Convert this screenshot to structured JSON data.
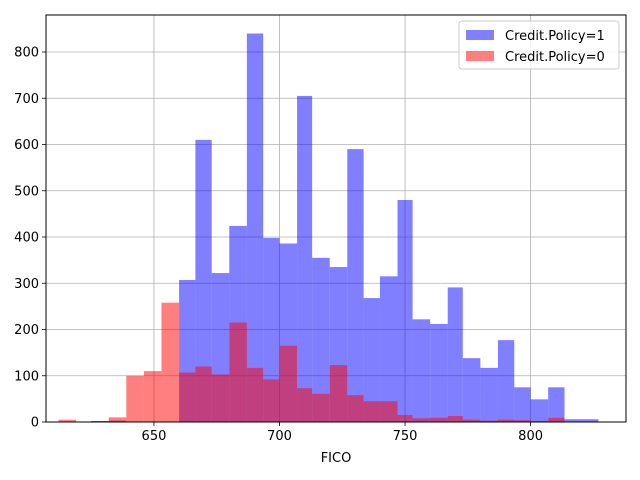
{
  "chart_data": {
    "type": "histogram",
    "title": "",
    "xlabel": "FICO",
    "ylabel": "",
    "xlim": [
      607,
      838
    ],
    "ylim": [
      0,
      880
    ],
    "xticks": [
      650,
      700,
      750,
      800
    ],
    "yticks": [
      0,
      100,
      200,
      300,
      400,
      500,
      600,
      700,
      800
    ],
    "grid": true,
    "legend_position": "upper right",
    "series": [
      {
        "name": "Credit.Policy=1",
        "color": "#0000ff",
        "alpha": 0.5,
        "bins": [
          [
            612,
            625,
            0
          ],
          [
            625,
            632,
            2
          ],
          [
            632,
            639,
            3
          ],
          [
            639,
            646,
            0
          ],
          [
            646,
            653,
            0
          ],
          [
            653,
            660,
            0
          ],
          [
            660,
            666.5,
            307
          ],
          [
            666.5,
            673,
            610
          ],
          [
            673,
            680,
            322
          ],
          [
            680,
            687,
            424
          ],
          [
            687,
            693.5,
            840
          ],
          [
            693.5,
            700,
            398
          ],
          [
            700,
            707,
            386
          ],
          [
            707,
            713,
            705
          ],
          [
            713,
            720,
            355
          ],
          [
            720,
            727,
            335
          ],
          [
            727,
            733.5,
            590
          ],
          [
            733.5,
            740,
            268
          ],
          [
            740,
            747,
            315
          ],
          [
            747,
            753,
            480
          ],
          [
            753,
            760,
            222
          ],
          [
            760,
            767,
            212
          ],
          [
            767,
            773,
            291
          ],
          [
            773,
            780,
            138
          ],
          [
            780,
            787,
            117
          ],
          [
            787,
            793.5,
            177
          ],
          [
            793.5,
            800,
            75
          ],
          [
            800,
            807,
            49
          ],
          [
            807,
            813.5,
            75
          ],
          [
            813.5,
            820,
            6
          ],
          [
            820,
            827,
            6
          ]
        ]
      },
      {
        "name": "Credit.Policy=0",
        "color": "#ff0000",
        "alpha": 0.5,
        "bins": [
          [
            612,
            619,
            5
          ],
          [
            619,
            625,
            0
          ],
          [
            625,
            632,
            2
          ],
          [
            632,
            639,
            10
          ],
          [
            639,
            646,
            100
          ],
          [
            646,
            653,
            110
          ],
          [
            653,
            660,
            258
          ],
          [
            660,
            666.5,
            107
          ],
          [
            666.5,
            673,
            120
          ],
          [
            673,
            680,
            103
          ],
          [
            680,
            687,
            215
          ],
          [
            687,
            693.5,
            117
          ],
          [
            693.5,
            700,
            92
          ],
          [
            700,
            707,
            165
          ],
          [
            707,
            713,
            73
          ],
          [
            713,
            720,
            61
          ],
          [
            720,
            727,
            123
          ],
          [
            727,
            733.5,
            58
          ],
          [
            733.5,
            740,
            45
          ],
          [
            740,
            747,
            45
          ],
          [
            747,
            753,
            15
          ],
          [
            753,
            760,
            8
          ],
          [
            760,
            767,
            9
          ],
          [
            767,
            773,
            13
          ],
          [
            773,
            780,
            5
          ],
          [
            780,
            787,
            3
          ],
          [
            787,
            793.5,
            5
          ],
          [
            793.5,
            800,
            4
          ],
          [
            800,
            807,
            2
          ],
          [
            807,
            813.5,
            9
          ],
          [
            813.5,
            820,
            0
          ],
          [
            820,
            827,
            0
          ]
        ]
      }
    ]
  }
}
